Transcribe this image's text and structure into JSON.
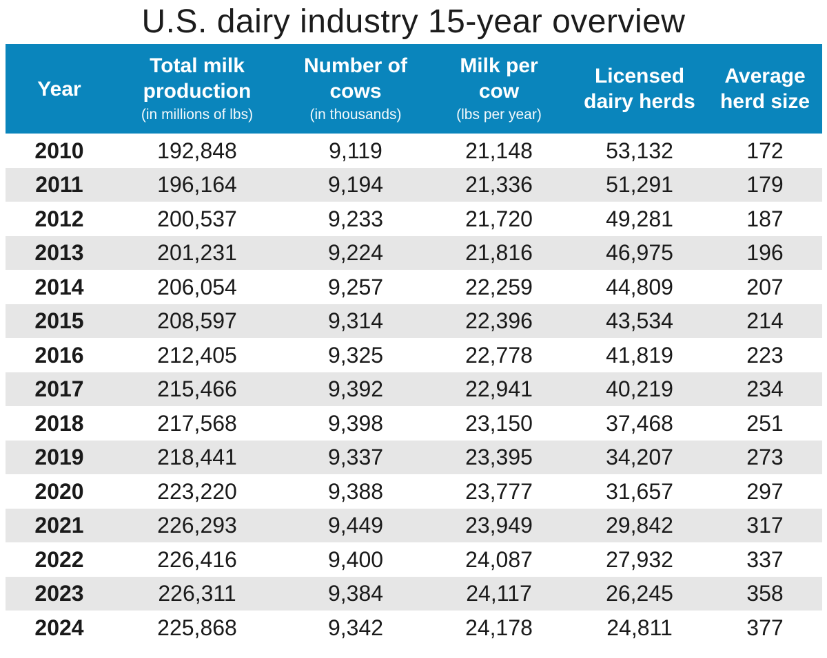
{
  "chart_data": {
    "type": "table",
    "title": "U.S. dairy industry 15-year overview",
    "columns": [
      {
        "label_lines": [
          "Year"
        ],
        "sub": ""
      },
      {
        "label_lines": [
          "Total milk",
          "production"
        ],
        "sub": "(in millions of lbs)"
      },
      {
        "label_lines": [
          "Number of",
          "cows"
        ],
        "sub": "(in thousands)"
      },
      {
        "label_lines": [
          "Milk per",
          "cow"
        ],
        "sub": "(lbs per year)"
      },
      {
        "label_lines": [
          "Licensed",
          "dairy herds"
        ],
        "sub": ""
      },
      {
        "label_lines": [
          "Average",
          "herd size"
        ],
        "sub": ""
      }
    ],
    "rows": [
      [
        "2010",
        "192,848",
        "9,119",
        "21,148",
        "53,132",
        "172"
      ],
      [
        "2011",
        "196,164",
        "9,194",
        "21,336",
        "51,291",
        "179"
      ],
      [
        "2012",
        "200,537",
        "9,233",
        "21,720",
        "49,281",
        "187"
      ],
      [
        "2013",
        "201,231",
        "9,224",
        "21,816",
        "46,975",
        "196"
      ],
      [
        "2014",
        "206,054",
        "9,257",
        "22,259",
        "44,809",
        "207"
      ],
      [
        "2015",
        "208,597",
        "9,314",
        "22,396",
        "43,534",
        "214"
      ],
      [
        "2016",
        "212,405",
        "9,325",
        "22,778",
        "41,819",
        "223"
      ],
      [
        "2017",
        "215,466",
        "9,392",
        "22,941",
        "40,219",
        "234"
      ],
      [
        "2018",
        "217,568",
        "9,398",
        "23,150",
        "37,468",
        "251"
      ],
      [
        "2019",
        "218,441",
        "9,337",
        "23,395",
        "34,207",
        "273"
      ],
      [
        "2020",
        "223,220",
        "9,388",
        "23,777",
        "31,657",
        "297"
      ],
      [
        "2021",
        "226,293",
        "9,449",
        "23,949",
        "29,842",
        "317"
      ],
      [
        "2022",
        "226,416",
        "9,400",
        "24,087",
        "27,932",
        "337"
      ],
      [
        "2023",
        "226,311",
        "9,384",
        "24,117",
        "26,245",
        "358"
      ],
      [
        "2024",
        "225,868",
        "9,342",
        "24,178",
        "24,811",
        "377"
      ]
    ]
  },
  "colors": {
    "header_bg": "#0a85bc",
    "header_text": "#ffffff",
    "stripe": "#e6e6e6"
  }
}
